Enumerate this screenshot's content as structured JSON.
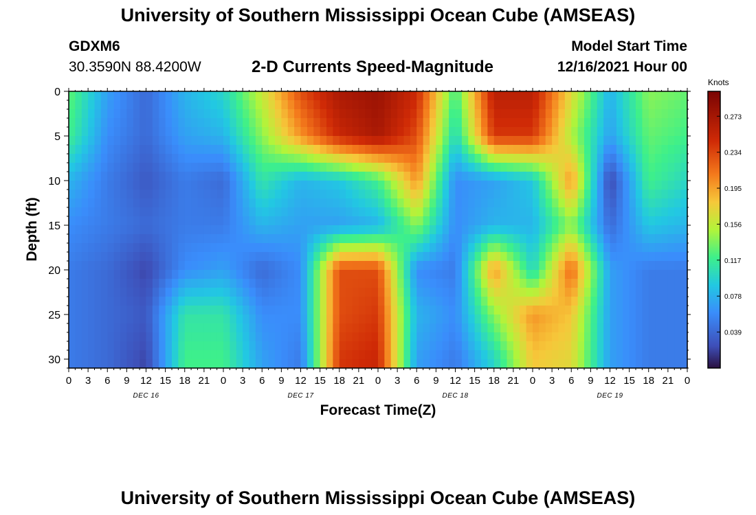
{
  "page": {
    "title_top": "University of Southern Mississippi Ocean Cube (AMSEAS)",
    "title_bottom": "University of Southern Mississippi Ocean Cube (AMSEAS)",
    "station_id": "GDXM6",
    "coordinates": "30.3590N  88.4200W",
    "model_start_label": "Model Start Time",
    "model_start_value": "12/16/2021 Hour 00"
  },
  "chart_data": {
    "type": "heatmap",
    "title": "2-D Currents Speed-Magnitude",
    "xlabel": "Forecast Time(Z)",
    "ylabel": "Depth (ft)",
    "x_tick_labels": [
      "0",
      "3",
      "6",
      "9",
      "12",
      "15",
      "18",
      "21",
      "0",
      "3",
      "6",
      "9",
      "12",
      "15",
      "18",
      "21",
      "0",
      "3",
      "6",
      "9",
      "12",
      "15",
      "18",
      "21",
      "0",
      "3",
      "6",
      "9",
      "12",
      "15",
      "18",
      "21",
      "0"
    ],
    "x_range_hours": [
      0,
      96
    ],
    "date_labels": [
      {
        "label": "DEC 16",
        "hour": 12
      },
      {
        "label": "DEC 17",
        "hour": 36
      },
      {
        "label": "DEC 18",
        "hour": 60
      },
      {
        "label": "DEC 19",
        "hour": 84
      }
    ],
    "y_ticks": [
      0,
      5,
      10,
      15,
      20,
      25,
      30
    ],
    "ylim": [
      0,
      31
    ],
    "y_inverted": true,
    "colorbar": {
      "unit": "Knots",
      "tick_values": [
        0.039,
        0.078,
        0.117,
        0.156,
        0.195,
        0.234,
        0.273
      ],
      "range": [
        0.0,
        0.3
      ]
    },
    "time_hours": [
      0,
      6,
      12,
      18,
      24,
      30,
      36,
      42,
      48,
      54,
      60,
      66,
      72,
      78,
      84,
      90,
      96
    ],
    "depths_ft": [
      0,
      5,
      10,
      15,
      20,
      25,
      30
    ],
    "speed_knots": [
      [
        0.13,
        0.07,
        0.04,
        0.08,
        0.1,
        0.16,
        0.23,
        0.27,
        0.28,
        0.25,
        0.12,
        0.26,
        0.26,
        0.17,
        0.08,
        0.14,
        0.13
      ],
      [
        0.12,
        0.06,
        0.04,
        0.07,
        0.08,
        0.14,
        0.2,
        0.25,
        0.27,
        0.23,
        0.1,
        0.24,
        0.24,
        0.15,
        0.07,
        0.13,
        0.12
      ],
      [
        0.08,
        0.05,
        0.03,
        0.05,
        0.04,
        0.11,
        0.08,
        0.09,
        0.12,
        0.2,
        0.06,
        0.07,
        0.09,
        0.2,
        0.02,
        0.12,
        0.1
      ],
      [
        0.06,
        0.05,
        0.04,
        0.05,
        0.05,
        0.08,
        0.07,
        0.07,
        0.08,
        0.14,
        0.06,
        0.08,
        0.08,
        0.14,
        0.04,
        0.09,
        0.08
      ],
      [
        0.05,
        0.04,
        0.02,
        0.06,
        0.07,
        0.04,
        0.06,
        0.23,
        0.23,
        0.06,
        0.05,
        0.2,
        0.1,
        0.22,
        0.07,
        0.05,
        0.05
      ],
      [
        0.05,
        0.04,
        0.03,
        0.11,
        0.11,
        0.06,
        0.06,
        0.23,
        0.24,
        0.08,
        0.06,
        0.14,
        0.2,
        0.18,
        0.07,
        0.05,
        0.05
      ],
      [
        0.05,
        0.04,
        0.02,
        0.12,
        0.12,
        0.07,
        0.05,
        0.24,
        0.25,
        0.07,
        0.05,
        0.1,
        0.18,
        0.17,
        0.07,
        0.05,
        0.05
      ]
    ]
  }
}
